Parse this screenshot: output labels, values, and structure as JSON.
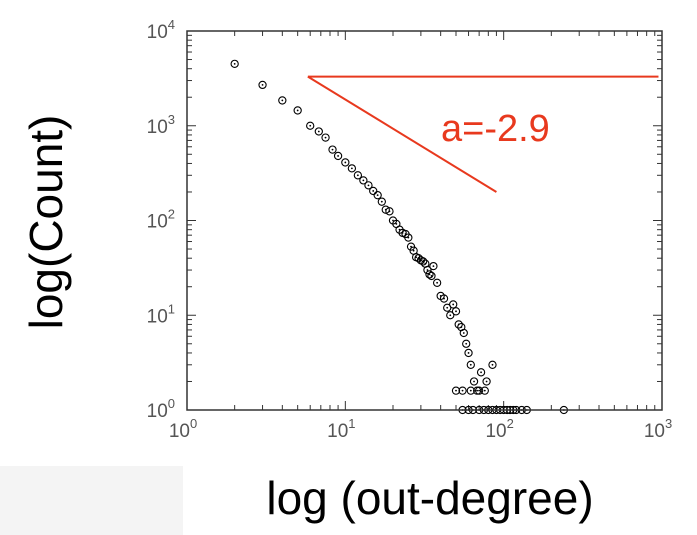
{
  "chart_data": {
    "type": "scatter",
    "title": "",
    "xlabel": "log (out-degree)",
    "ylabel": "log(Count)",
    "xscale": "log",
    "yscale": "log",
    "xlim": [
      1,
      1000
    ],
    "ylim": [
      1,
      10000
    ],
    "x_ticks": [
      {
        "base": "10",
        "exp": "0",
        "value": 1
      },
      {
        "base": "10",
        "exp": "1",
        "value": 10
      },
      {
        "base": "10",
        "exp": "2",
        "value": 100
      },
      {
        "base": "10",
        "exp": "3",
        "value": 1000
      }
    ],
    "y_ticks": [
      {
        "base": "10",
        "exp": "0",
        "value": 1
      },
      {
        "base": "10",
        "exp": "1",
        "value": 10
      },
      {
        "base": "10",
        "exp": "2",
        "value": 100
      },
      {
        "base": "10",
        "exp": "3",
        "value": 1000
      },
      {
        "base": "10",
        "exp": "4",
        "value": 10000
      }
    ],
    "series": [
      {
        "marker": "circle-dot",
        "color": "#000000",
        "points": [
          [
            2,
            4500
          ],
          [
            3,
            2700
          ],
          [
            4,
            1850
          ],
          [
            5,
            1450
          ],
          [
            6,
            1000
          ],
          [
            6.8,
            870
          ],
          [
            7.5,
            750
          ],
          [
            8.3,
            560
          ],
          [
            9,
            480
          ],
          [
            10,
            410
          ],
          [
            11,
            355
          ],
          [
            12,
            300
          ],
          [
            13,
            265
          ],
          [
            14,
            235
          ],
          [
            15,
            205
          ],
          [
            16,
            185
          ],
          [
            17,
            158
          ],
          [
            18,
            130
          ],
          [
            19,
            125
          ],
          [
            20,
            100
          ],
          [
            21,
            92
          ],
          [
            22,
            80
          ],
          [
            23,
            74
          ],
          [
            24,
            72
          ],
          [
            25,
            66
          ],
          [
            26,
            53
          ],
          [
            27,
            48
          ],
          [
            28,
            41
          ],
          [
            29,
            40
          ],
          [
            30,
            38
          ],
          [
            31,
            37
          ],
          [
            32,
            35
          ],
          [
            33,
            30
          ],
          [
            34,
            27
          ],
          [
            35,
            26
          ],
          [
            36,
            33
          ],
          [
            38,
            22
          ],
          [
            40,
            16
          ],
          [
            42,
            15
          ],
          [
            44,
            12
          ],
          [
            46,
            10
          ],
          [
            48,
            13
          ],
          [
            50,
            11
          ],
          [
            52,
            8
          ],
          [
            54,
            7.5
          ],
          [
            56,
            6.5
          ],
          [
            58,
            5
          ],
          [
            60,
            4
          ],
          [
            62,
            3
          ],
          [
            65,
            2
          ],
          [
            68,
            1.6
          ],
          [
            72,
            2.5
          ],
          [
            78,
            2
          ],
          [
            85,
            3
          ],
          [
            50,
            1.6
          ],
          [
            55,
            1.6
          ],
          [
            62,
            1.6
          ],
          [
            70,
            1.6
          ],
          [
            76,
            1.6
          ],
          [
            55,
            1
          ],
          [
            60,
            1
          ],
          [
            64,
            1
          ],
          [
            70,
            1
          ],
          [
            75,
            1
          ],
          [
            80,
            1
          ],
          [
            85,
            1
          ],
          [
            90,
            1
          ],
          [
            95,
            1
          ],
          [
            100,
            1
          ],
          [
            105,
            1
          ],
          [
            110,
            1
          ],
          [
            115,
            1
          ],
          [
            120,
            1
          ],
          [
            130,
            1
          ],
          [
            140,
            1
          ],
          [
            240,
            1
          ]
        ]
      }
    ],
    "fit_line": {
      "color": "#e8391e",
      "x": [
        5.8,
        90
      ],
      "y": [
        3300,
        200
      ]
    },
    "reference_line": {
      "color": "#e8391e",
      "x": [
        5.8,
        950
      ],
      "y": [
        3300,
        3300
      ]
    },
    "annotation": {
      "text": "a=-2.9",
      "color": "#e8391e",
      "x": 60,
      "y": 800
    }
  }
}
